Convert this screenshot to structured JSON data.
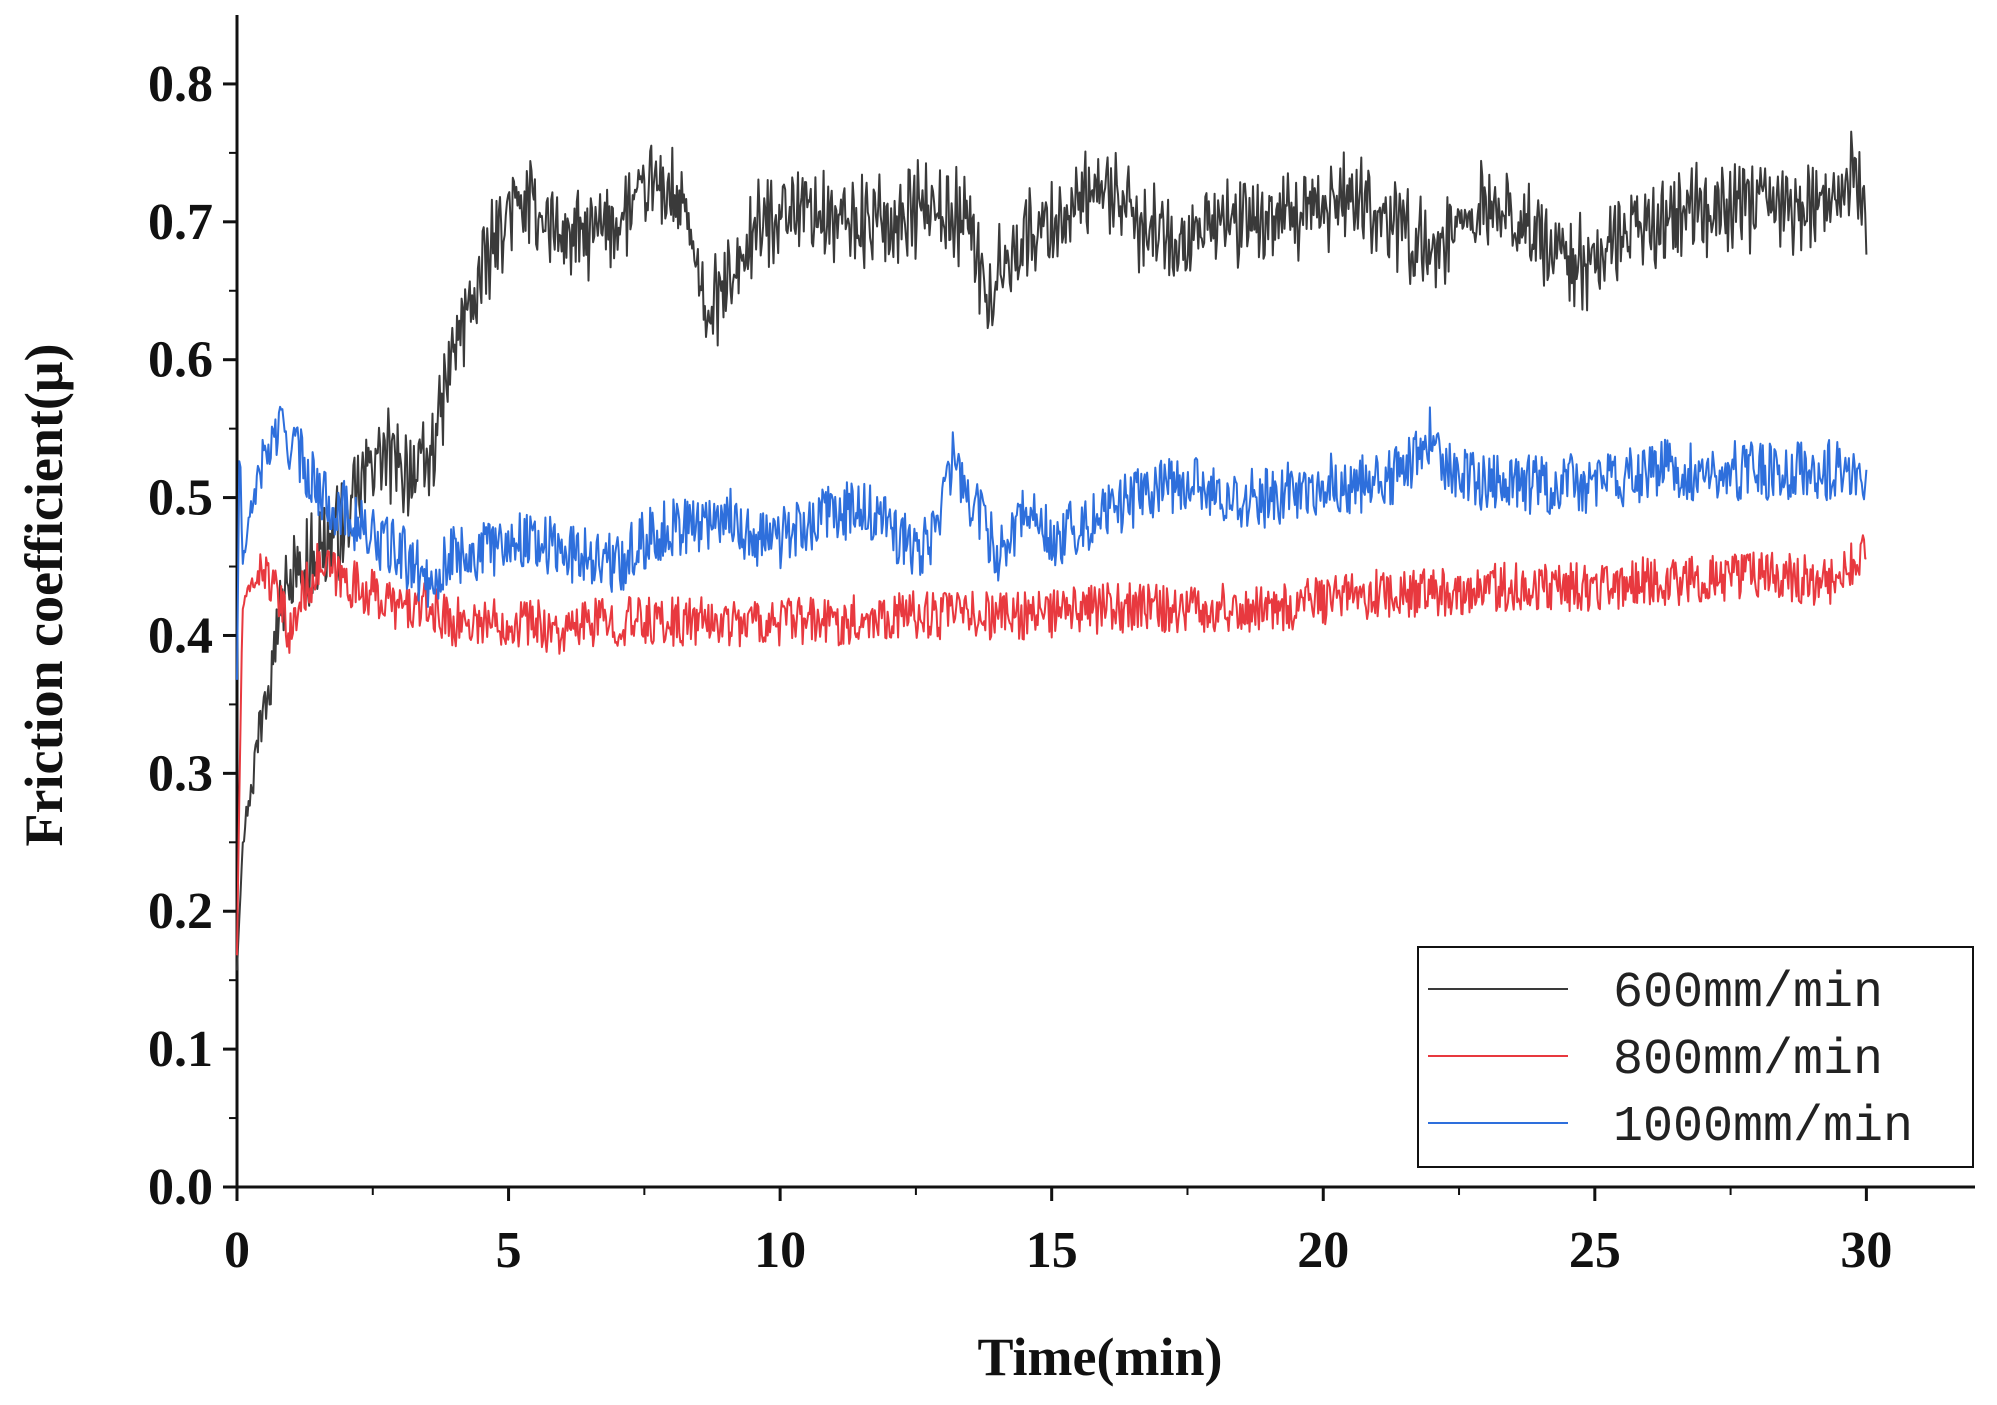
{
  "chart_data": {
    "type": "line",
    "title": "",
    "xlabel": "Time(min)",
    "ylabel": "Friction coefficient(μ)",
    "xlim": [
      0,
      32
    ],
    "ylim": [
      0,
      0.85
    ],
    "xticks": [
      0,
      5,
      10,
      15,
      20,
      25,
      30
    ],
    "xtick_labels": [
      "0",
      "5",
      "10",
      "15",
      "20",
      "25",
      "30"
    ],
    "yticks": [
      0.0,
      0.1,
      0.2,
      0.3,
      0.4,
      0.5,
      0.6,
      0.7,
      0.8
    ],
    "ytick_labels": [
      "0.0",
      "0.1",
      "0.2",
      "0.3",
      "0.4",
      "0.5",
      "0.6",
      "0.7",
      "0.8"
    ],
    "grid": false,
    "legend_position": "bottom-right",
    "series": [
      {
        "name": "600mm/min",
        "color": "#3a3a3a",
        "noise": 0.025,
        "x": [
          0,
          0.1,
          0.3,
          0.5,
          0.8,
          1.0,
          1.5,
          2.0,
          2.5,
          2.8,
          3.0,
          3.5,
          3.8,
          4.0,
          4.5,
          5.0,
          5.5,
          6.0,
          6.5,
          7.0,
          7.5,
          7.7,
          8.0,
          8.3,
          8.6,
          9.0,
          9.5,
          10.0,
          10.5,
          11.0,
          11.5,
          12.0,
          12.5,
          13.0,
          13.5,
          13.8,
          14.0,
          14.5,
          15.0,
          15.5,
          15.8,
          16.2,
          16.5,
          17.0,
          17.5,
          18.0,
          18.5,
          19.0,
          19.5,
          20.0,
          20.5,
          21.0,
          21.5,
          22.0,
          22.5,
          23.0,
          23.5,
          24.0,
          24.5,
          25.0,
          25.5,
          26.0,
          26.5,
          27.0,
          27.5,
          28.0,
          28.5,
          29.0,
          29.5,
          29.8,
          30.0
        ],
        "y": [
          0.16,
          0.25,
          0.3,
          0.36,
          0.42,
          0.44,
          0.46,
          0.48,
          0.53,
          0.53,
          0.52,
          0.52,
          0.57,
          0.61,
          0.66,
          0.71,
          0.71,
          0.69,
          0.69,
          0.7,
          0.72,
          0.73,
          0.72,
          0.7,
          0.63,
          0.65,
          0.69,
          0.71,
          0.71,
          0.7,
          0.7,
          0.7,
          0.71,
          0.71,
          0.7,
          0.64,
          0.66,
          0.69,
          0.7,
          0.71,
          0.72,
          0.72,
          0.7,
          0.69,
          0.69,
          0.7,
          0.7,
          0.7,
          0.7,
          0.71,
          0.72,
          0.71,
          0.69,
          0.68,
          0.7,
          0.71,
          0.7,
          0.69,
          0.67,
          0.67,
          0.69,
          0.7,
          0.7,
          0.71,
          0.71,
          0.71,
          0.71,
          0.71,
          0.72,
          0.74,
          0.7
        ]
      },
      {
        "name": "800mm/min",
        "color": "#e8393f",
        "noise": 0.018,
        "x": [
          0,
          0.05,
          0.1,
          0.3,
          0.5,
          0.8,
          1.0,
          1.2,
          1.5,
          2.0,
          2.5,
          3.0,
          3.5,
          4.0,
          4.5,
          5.0,
          5.5,
          6.0,
          6.5,
          7.0,
          8.0,
          9.0,
          10.0,
          11.0,
          12.0,
          13.0,
          14.0,
          15.0,
          16.0,
          17.0,
          18.0,
          19.0,
          20.0,
          21.0,
          22.0,
          23.0,
          24.0,
          25.0,
          26.0,
          27.0,
          28.0,
          29.0,
          29.5,
          30.0
        ],
        "y": [
          0.17,
          0.3,
          0.42,
          0.44,
          0.45,
          0.42,
          0.4,
          0.43,
          0.45,
          0.44,
          0.43,
          0.42,
          0.42,
          0.41,
          0.41,
          0.41,
          0.41,
          0.4,
          0.41,
          0.41,
          0.41,
          0.41,
          0.41,
          0.41,
          0.415,
          0.415,
          0.415,
          0.415,
          0.42,
          0.42,
          0.42,
          0.42,
          0.425,
          0.43,
          0.43,
          0.435,
          0.435,
          0.435,
          0.44,
          0.44,
          0.445,
          0.44,
          0.44,
          0.46
        ]
      },
      {
        "name": "1000mm/min",
        "color": "#2e6fdc",
        "noise": 0.022,
        "x": [
          0,
          0.05,
          0.1,
          0.3,
          0.5,
          0.8,
          1.0,
          1.3,
          1.6,
          2.0,
          2.5,
          3.0,
          3.5,
          3.8,
          4.0,
          4.5,
          5.0,
          5.5,
          6.0,
          6.5,
          7.0,
          7.5,
          8.0,
          8.5,
          9.0,
          9.5,
          10.0,
          10.5,
          11.0,
          11.5,
          12.0,
          12.5,
          12.8,
          13.0,
          13.2,
          13.5,
          14.0,
          14.3,
          14.5,
          14.8,
          15.0,
          15.5,
          16.0,
          16.5,
          17.0,
          17.5,
          18.0,
          19.0,
          20.0,
          21.0,
          21.5,
          21.8,
          22.0,
          22.3,
          23.0,
          24.0,
          25.0,
          26.0,
          27.0,
          28.0,
          29.0,
          30.0
        ],
        "y": [
          0.37,
          0.55,
          0.45,
          0.5,
          0.53,
          0.55,
          0.54,
          0.52,
          0.5,
          0.49,
          0.47,
          0.46,
          0.44,
          0.45,
          0.46,
          0.46,
          0.47,
          0.47,
          0.46,
          0.46,
          0.45,
          0.47,
          0.48,
          0.48,
          0.49,
          0.47,
          0.47,
          0.48,
          0.49,
          0.49,
          0.48,
          0.46,
          0.47,
          0.5,
          0.53,
          0.5,
          0.46,
          0.47,
          0.5,
          0.48,
          0.47,
          0.48,
          0.49,
          0.5,
          0.51,
          0.51,
          0.5,
          0.5,
          0.51,
          0.51,
          0.52,
          0.53,
          0.55,
          0.52,
          0.51,
          0.51,
          0.51,
          0.52,
          0.52,
          0.52,
          0.52,
          0.52
        ]
      }
    ]
  }
}
